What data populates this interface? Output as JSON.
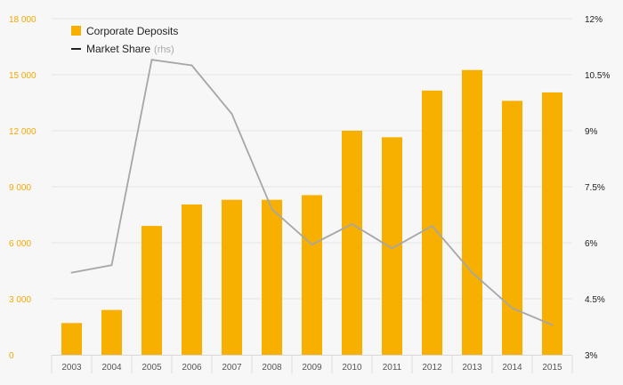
{
  "chart_data": {
    "type": "bar",
    "categories": [
      "2003",
      "2004",
      "2005",
      "2006",
      "2007",
      "2008",
      "2009",
      "2010",
      "2011",
      "2012",
      "2013",
      "2014",
      "2015"
    ],
    "series": [
      {
        "name": "Corporate Deposits",
        "type": "bar",
        "axis": "left",
        "color": "#f8b000",
        "values": [
          1700,
          2400,
          6900,
          8050,
          8300,
          8300,
          8550,
          12000,
          11650,
          14150,
          15250,
          13600,
          14050
        ]
      },
      {
        "name": "Market Share",
        "legend_suffix": "(rhs)",
        "type": "line",
        "axis": "right",
        "color": "#a6a6a6",
        "values": [
          5.2,
          5.4,
          10.9,
          10.75,
          9.45,
          6.9,
          5.95,
          6.5,
          5.85,
          6.45,
          5.2,
          4.25,
          3.8
        ]
      }
    ],
    "y_left": {
      "min": 0,
      "max": 18000,
      "ticks": [
        0,
        3000,
        6000,
        9000,
        12000,
        15000,
        18000
      ],
      "tick_labels": [
        "0",
        "3 000",
        "6 000",
        "9 000",
        "12 000",
        "15 000",
        "18 000"
      ]
    },
    "y_right": {
      "min": 3,
      "max": 12,
      "ticks": [
        3,
        4.5,
        6,
        7.5,
        9,
        10.5,
        12
      ],
      "tick_labels": [
        "3%",
        "4.5%",
        "6%",
        "7.5%",
        "9%",
        "10.5%",
        "12%"
      ]
    },
    "grid": true,
    "legend": {
      "placement": "top-left",
      "entries": [
        {
          "label": "Corporate Deposits",
          "marker": "square",
          "color": "#f8b000"
        },
        {
          "label": "Market Share",
          "suffix": "(rhs)",
          "marker": "line",
          "color": "#222222"
        }
      ]
    },
    "title": "",
    "xlabel": "",
    "ylabel": ""
  }
}
